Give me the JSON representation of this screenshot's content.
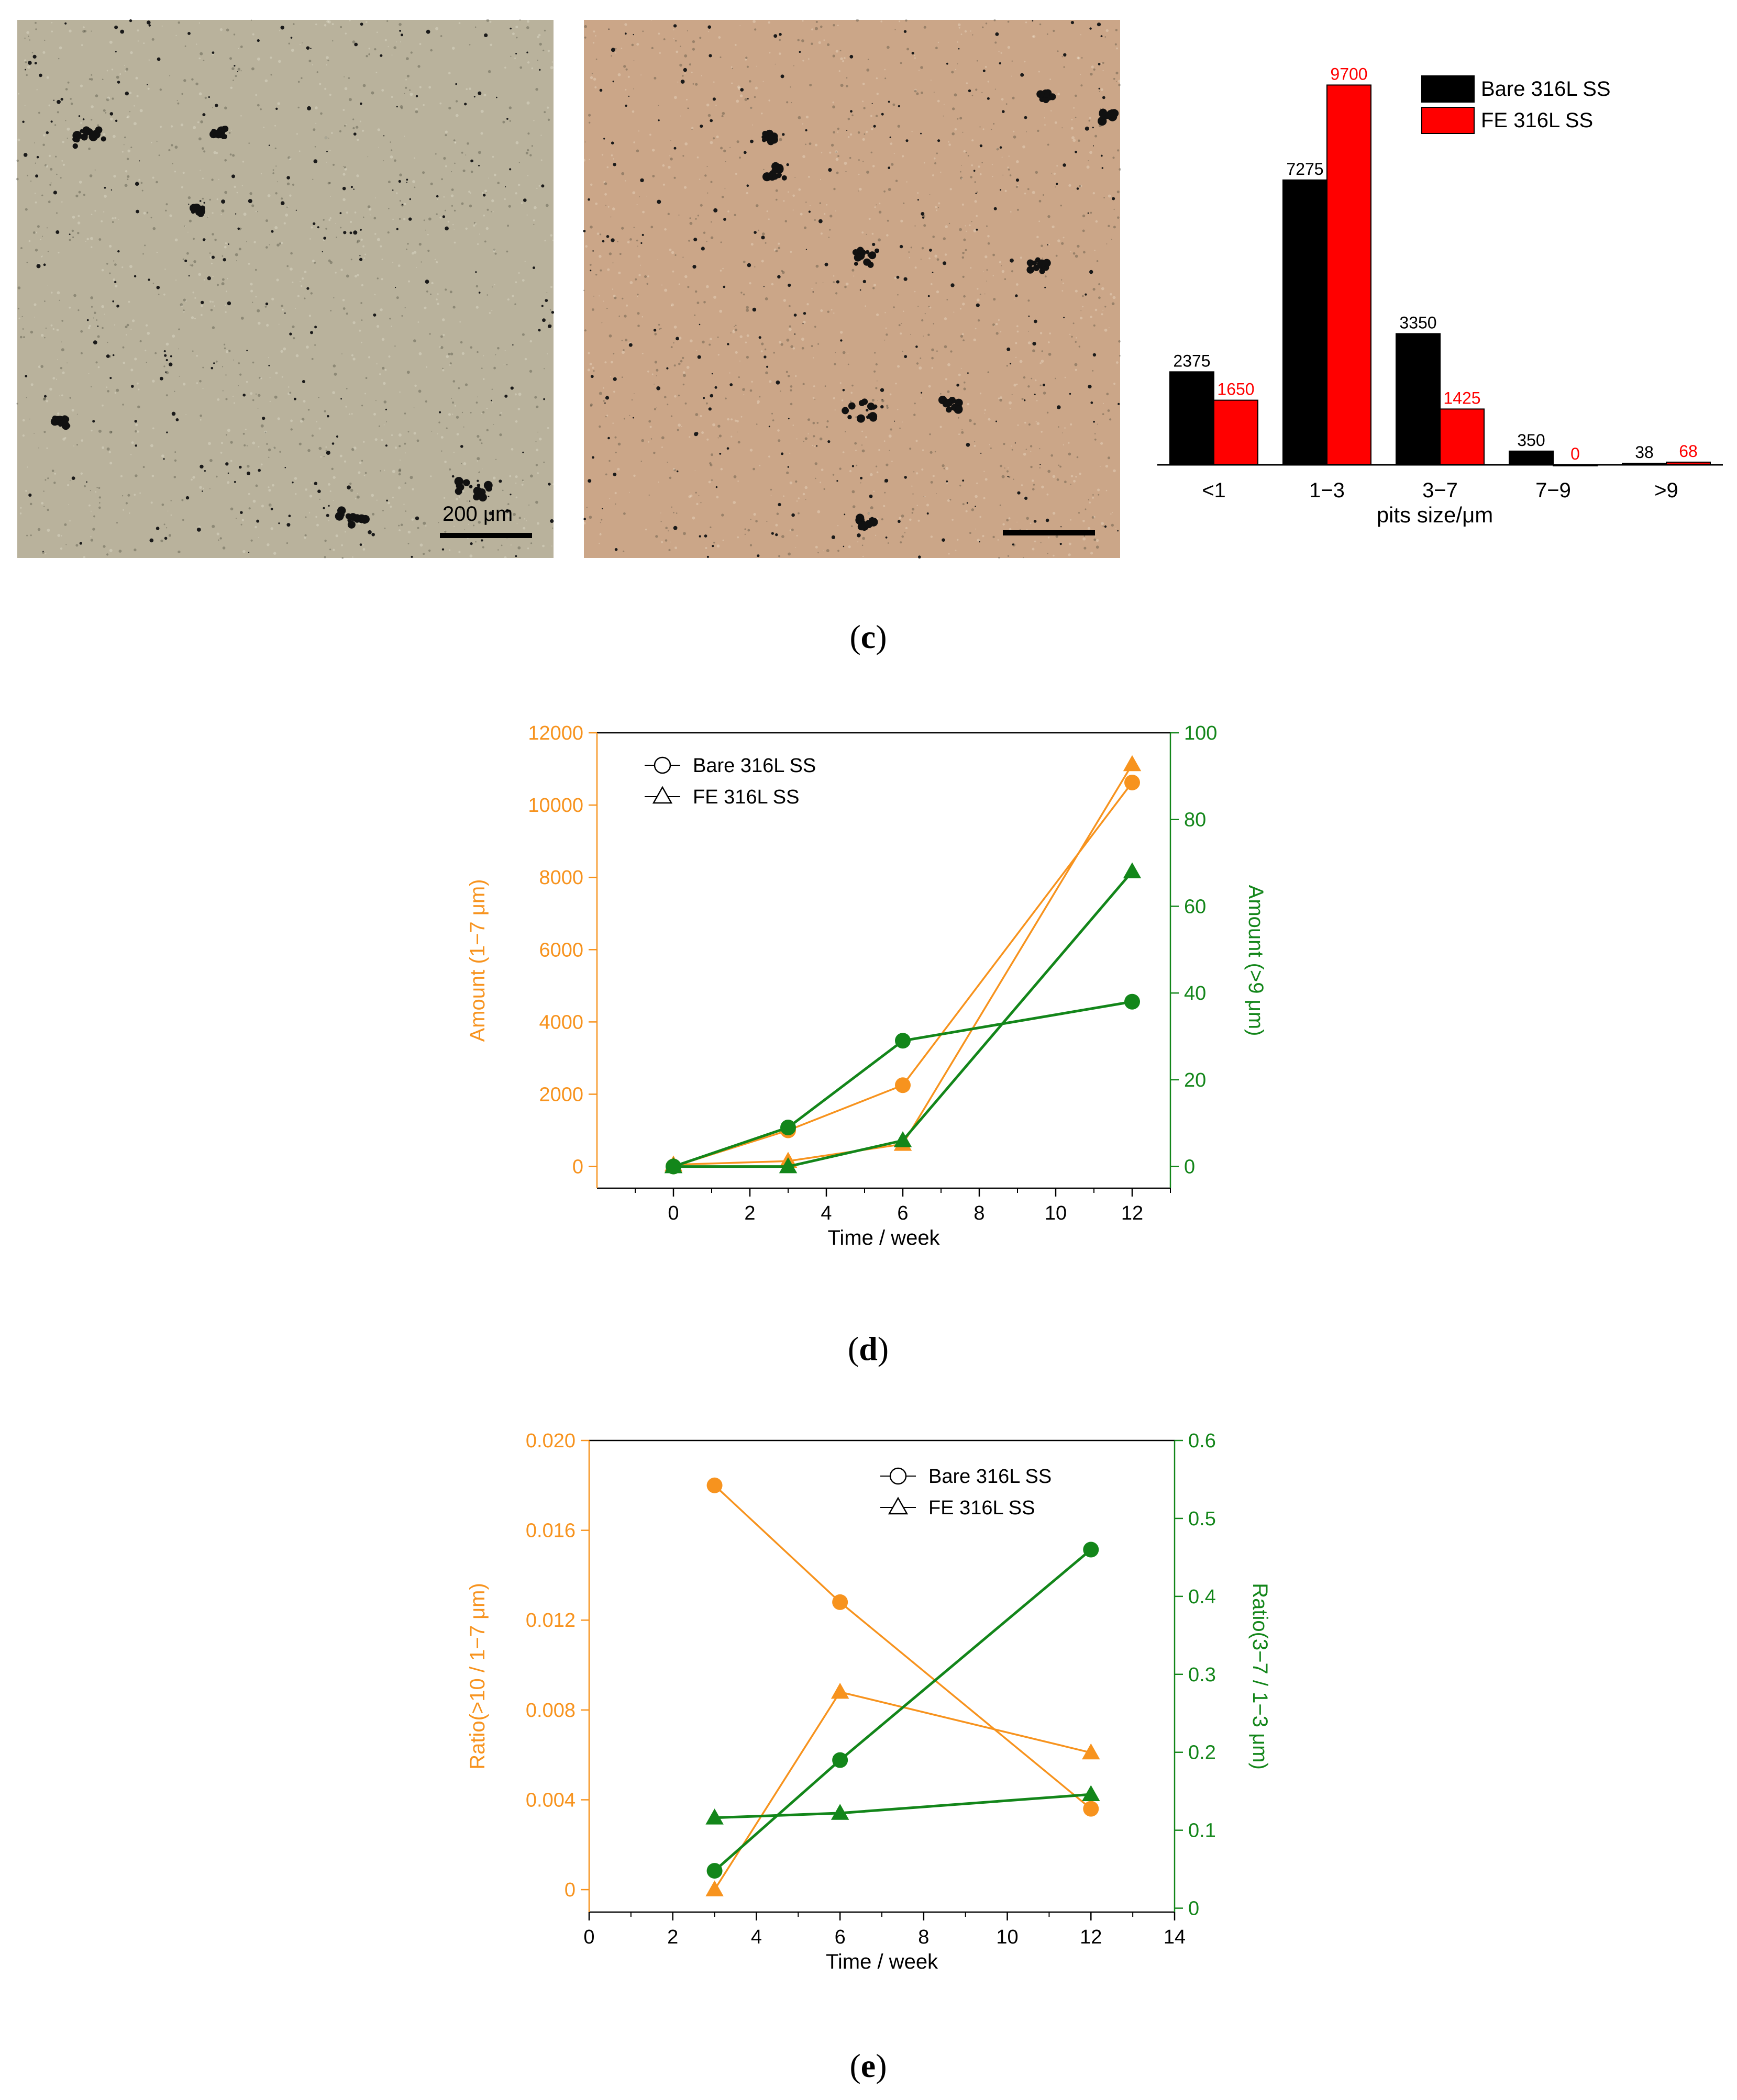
{
  "micrographs": {
    "left": {
      "scale_label": "200 μm",
      "tone": "#b9b29c"
    },
    "right": {
      "scale_label": "",
      "tone": "#cba688"
    }
  },
  "panel_labels": {
    "c": "c",
    "d": "d",
    "e": "e"
  },
  "colors": {
    "bare": "#000000",
    "fe": "#ff0000",
    "orange": "#f7931e",
    "green": "#13861a"
  },
  "chart_data": [
    {
      "id": "c",
      "type": "bar",
      "categories": [
        "<1",
        "1−3",
        "3−7",
        "7−9",
        ">9"
      ],
      "series": [
        {
          "name": "Bare 316L SS",
          "values": [
            2375,
            7275,
            3350,
            350,
            38
          ],
          "labels": [
            "2375",
            "7275",
            "3350",
            "350",
            "38"
          ]
        },
        {
          "name": "FE 316L SS",
          "values": [
            1650,
            9700,
            1425,
            0,
            68
          ],
          "labels": [
            "1650",
            "9700",
            "1425",
            "0",
            "68"
          ]
        }
      ],
      "xlabel": "pits size/μm",
      "ylabel": "",
      "ylim": [
        0,
        10000
      ],
      "legend": "top-right"
    },
    {
      "id": "d",
      "type": "line",
      "xlabel": "Time / week",
      "xlim": [
        -2,
        13
      ],
      "xticks": [
        "0",
        "2",
        "4",
        "6",
        "8",
        "10",
        "12"
      ],
      "left_axis": {
        "label": "Amount (1−7 μm)",
        "ylim": [
          -600,
          12000
        ],
        "ticks": [
          "0",
          "2000",
          "4000",
          "6000",
          "8000",
          "10000",
          "12000"
        ]
      },
      "right_axis": {
        "label": "Amount (>9 μm)",
        "ylim": [
          -5,
          100
        ],
        "ticks": [
          "0",
          "20",
          "40",
          "60",
          "80",
          "100"
        ]
      },
      "legend": [
        {
          "marker": "circle",
          "label": "Bare 316L SS"
        },
        {
          "marker": "triangle",
          "label": "FE 316L SS"
        }
      ],
      "series": [
        {
          "name": "Bare 316L SS",
          "axis": "left",
          "marker": "circle",
          "x": [
            0,
            3,
            6,
            12
          ],
          "y": [
            0,
            1000,
            2250,
            10625
          ]
        },
        {
          "name": "FE 316L SS",
          "axis": "left",
          "marker": "triangle",
          "x": [
            0,
            3,
            6,
            12
          ],
          "y": [
            50,
            150,
            620,
            11125
          ]
        },
        {
          "name": "Bare 316L SS",
          "axis": "right",
          "marker": "circle",
          "x": [
            0,
            3,
            6,
            12
          ],
          "y": [
            0,
            9,
            29,
            38
          ]
        },
        {
          "name": "FE 316L SS",
          "axis": "right",
          "marker": "triangle",
          "x": [
            0,
            3,
            6,
            12
          ],
          "y": [
            0,
            0,
            6,
            68
          ]
        }
      ]
    },
    {
      "id": "e",
      "type": "line",
      "xlabel": "Time / week",
      "xlim": [
        0,
        14
      ],
      "xticks": [
        "0",
        "2",
        "4",
        "6",
        "8",
        "10",
        "12",
        "14"
      ],
      "left_axis": {
        "label": "Ratio(>10 / 1−7 μm)",
        "ylim": [
          -0.001,
          0.02
        ],
        "ticks": [
          "0",
          "0.004",
          "0.008",
          "0.012",
          "0.016",
          "0.020"
        ]
      },
      "right_axis": {
        "label": "Ratio(3−7 / 1−3 μm)",
        "ylim": [
          -0.005,
          0.6
        ],
        "ticks": [
          "0",
          "0.1",
          "0.2",
          "0.3",
          "0.4",
          "0.5",
          "0.6"
        ]
      },
      "legend": [
        {
          "marker": "circle",
          "label": "Bare 316L SS"
        },
        {
          "marker": "triangle",
          "label": "FE 316L SS"
        }
      ],
      "series": [
        {
          "name": "Bare 316L SS",
          "axis": "left",
          "marker": "circle",
          "x": [
            3,
            6,
            12
          ],
          "y": [
            0.018,
            0.0128,
            0.0036
          ]
        },
        {
          "name": "FE 316L SS",
          "axis": "left",
          "marker": "triangle",
          "x": [
            3,
            6,
            12
          ],
          "y": [
            0.0,
            0.0088,
            0.0061
          ]
        },
        {
          "name": "Bare 316L SS",
          "axis": "right",
          "marker": "circle",
          "x": [
            3,
            6,
            12
          ],
          "y": [
            0.048,
            0.19,
            0.46
          ]
        },
        {
          "name": "FE 316L SS",
          "axis": "right",
          "marker": "triangle",
          "x": [
            3,
            6,
            12
          ],
          "y": [
            0.116,
            0.122,
            0.146
          ]
        }
      ]
    }
  ]
}
